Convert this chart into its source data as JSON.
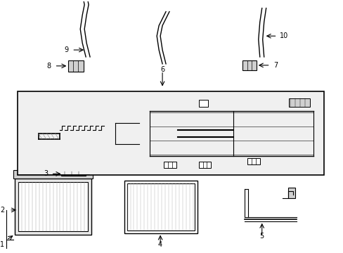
{
  "title": "",
  "bg_color": "#ffffff",
  "border_color": "#000000",
  "line_color": "#000000",
  "label_color": "#000000",
  "fig_width": 4.89,
  "fig_height": 3.6,
  "dpi": 100
}
